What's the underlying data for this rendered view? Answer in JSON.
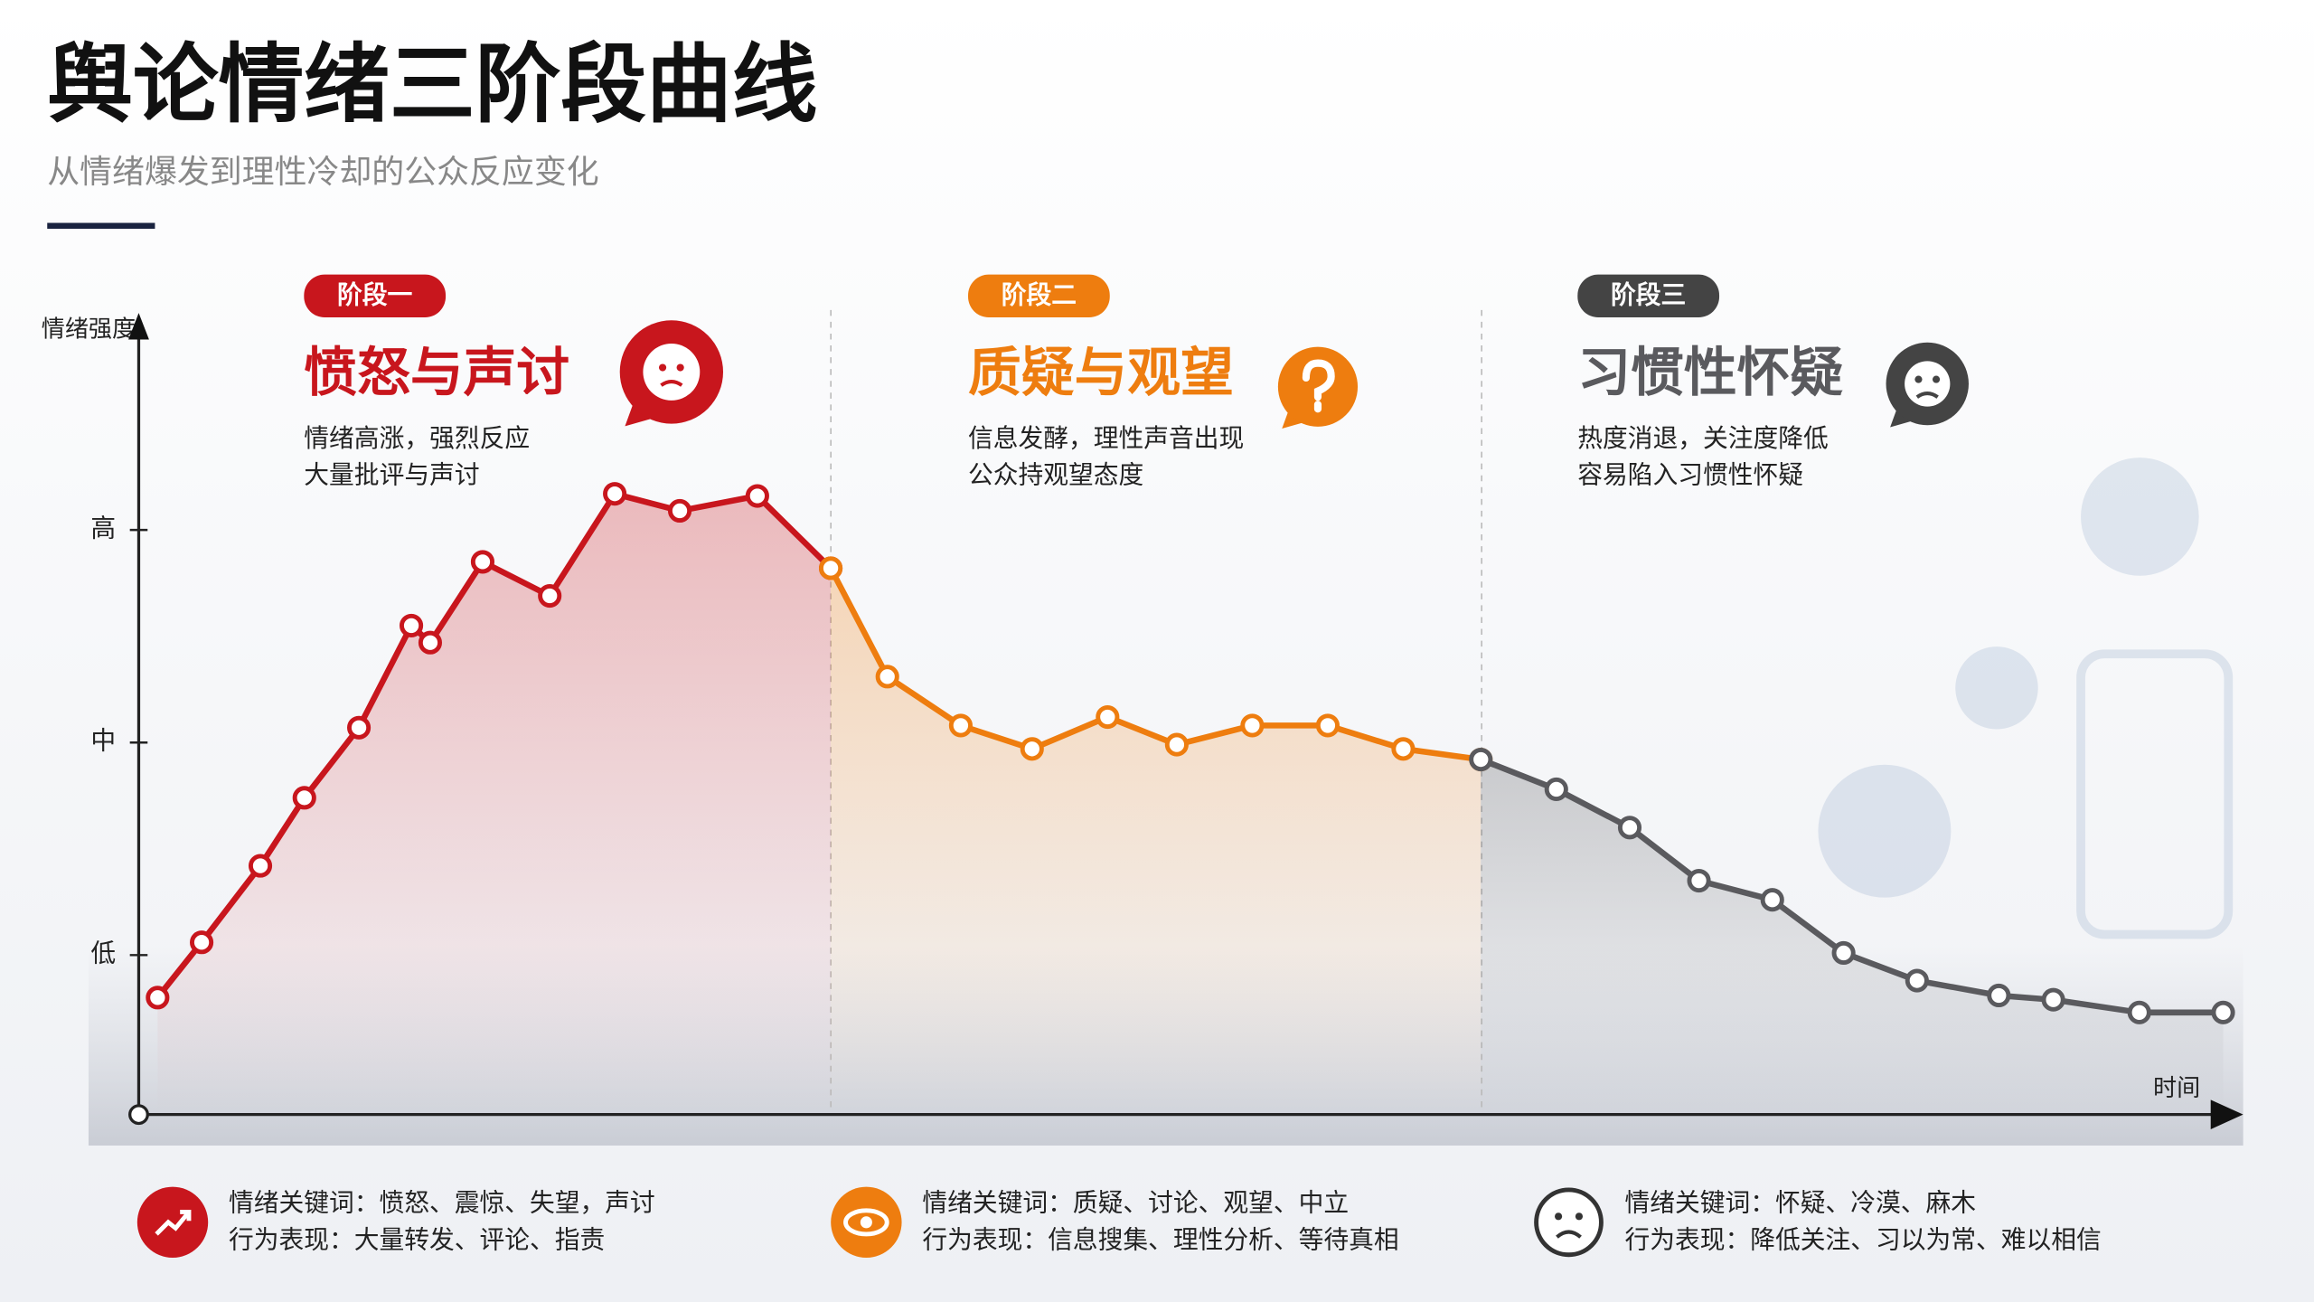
{
  "chart_data": {
    "type": "line",
    "title": "舆论情绪三阶段曲线",
    "subtitle": "从情绪爆发到理性冷却的公众反应变化",
    "y_label": "情绪强度",
    "x_label": "时间",
    "xlim": [
      0,
      100
    ],
    "ylim": [
      0.25,
      4
    ],
    "yticks": [
      {
        "value": 1,
        "label": "低"
      },
      {
        "value": 2,
        "label": "中"
      },
      {
        "value": 3,
        "label": "高"
      }
    ],
    "series": [
      {
        "name": "愤怒与声讨",
        "color": "#c8161d",
        "x": [
          0.9,
          3.0,
          5.8,
          7.9,
          10.5,
          13.0,
          13.9,
          16.4,
          19.6,
          22.7,
          25.8,
          29.5,
          33.0
        ],
        "values": [
          0.8,
          1.06,
          1.42,
          1.74,
          2.07,
          2.55,
          2.47,
          2.85,
          2.69,
          3.17,
          3.09,
          3.16,
          2.82
        ]
      },
      {
        "name": "质疑与观望",
        "color": "#ee7d0f",
        "x": [
          33.0,
          35.7,
          39.2,
          42.6,
          46.2,
          49.5,
          53.1,
          56.7,
          60.3,
          64.0
        ],
        "values": [
          2.82,
          2.31,
          2.08,
          1.97,
          2.12,
          1.99,
          2.08,
          2.08,
          1.97,
          1.92
        ]
      },
      {
        "name": "习惯性怀疑",
        "color": "#5a5a5e",
        "x": [
          64.0,
          67.6,
          71.1,
          74.4,
          77.9,
          81.3,
          84.8,
          88.7,
          91.3,
          95.4,
          99.4
        ],
        "values": [
          1.92,
          1.78,
          1.6,
          1.35,
          1.26,
          1.01,
          0.88,
          0.81,
          0.79,
          0.73,
          0.73
        ]
      }
    ],
    "stages": [
      {
        "badge": "阶段一",
        "lines": [
          "情绪高涨，强烈反应",
          "大量批评与声讨"
        ]
      },
      {
        "badge": "阶段二",
        "lines": [
          "信息发酵，理性声音出现",
          "公众持观望态度"
        ]
      },
      {
        "badge": "阶段三",
        "lines": [
          "热度消退，关注度降低",
          "容易陷入习惯性怀疑"
        ]
      }
    ],
    "footer": [
      {
        "keywords": "情绪关键词：愤怒、震惊、失望，声讨",
        "behavior": "行为表现：大量转发、评论、指责"
      },
      {
        "keywords": "情绪关键词：质疑、讨论、观望、中立",
        "behavior": "行为表现：信息搜集、理性分析、等待真相"
      },
      {
        "keywords": "情绪关键词：怀疑、冷漠、麻木",
        "behavior": "行为表现：降低关注、习以为常、难以相信"
      }
    ]
  }
}
